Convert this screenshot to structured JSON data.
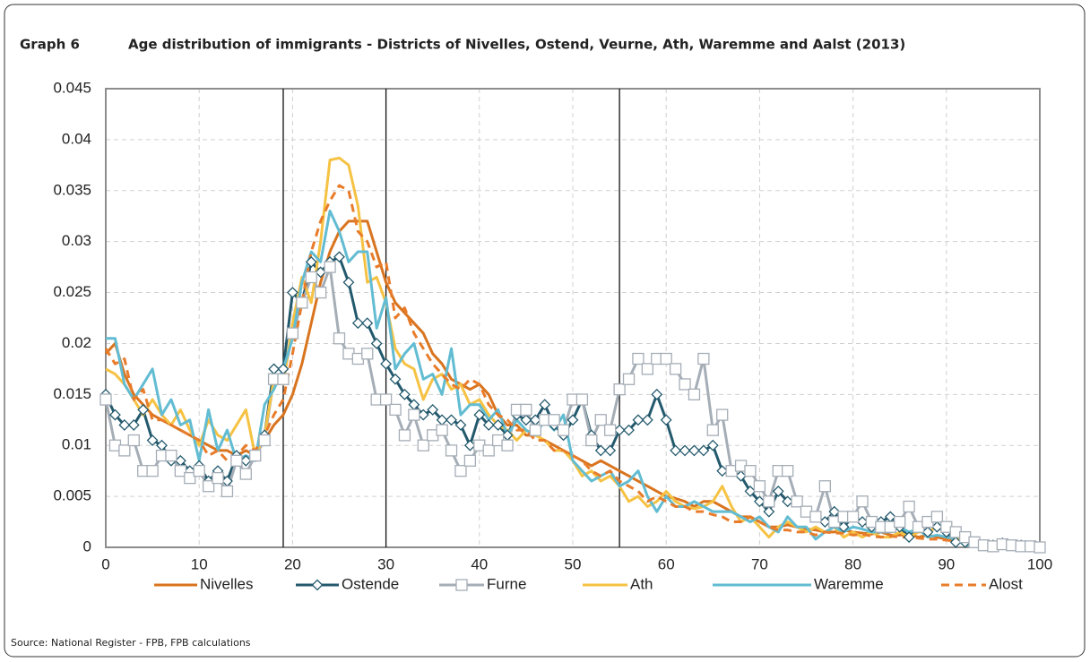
{
  "chart_data": {
    "type": "line",
    "label": "Graph 6",
    "title": "Age distribution of immigrants - Districts of Nivelles, Ostend, Veurne, Ath, Waremme and Aalst (2013)",
    "source": "Source: National Register - FPB, FPB calculations",
    "x": [
      0,
      1,
      2,
      3,
      4,
      5,
      6,
      7,
      8,
      9,
      10,
      11,
      12,
      13,
      14,
      15,
      16,
      17,
      18,
      19,
      20,
      21,
      22,
      23,
      24,
      25,
      26,
      27,
      28,
      29,
      30,
      31,
      32,
      33,
      34,
      35,
      36,
      37,
      38,
      39,
      40,
      41,
      42,
      43,
      44,
      45,
      46,
      47,
      48,
      49,
      50,
      51,
      52,
      53,
      54,
      55,
      56,
      57,
      58,
      59,
      60,
      61,
      62,
      63,
      64,
      65,
      66,
      67,
      68,
      69,
      70,
      71,
      72,
      73,
      74,
      75,
      76,
      77,
      78,
      79,
      80,
      81,
      82,
      83,
      84,
      85,
      86,
      87,
      88,
      89,
      90,
      91,
      92,
      93,
      94,
      95,
      96,
      97,
      98,
      99,
      100
    ],
    "xlim": [
      0,
      100
    ],
    "xticks": [
      0,
      10,
      20,
      30,
      40,
      50,
      60,
      70,
      80,
      90,
      100
    ],
    "ylim": [
      0,
      0.045
    ],
    "yticks": [
      0,
      0.005,
      0.01,
      0.015,
      0.02,
      0.025,
      0.03,
      0.035,
      0.04,
      0.045
    ],
    "grid": true,
    "legend": "bottom",
    "vlines": [
      19,
      30,
      55
    ],
    "series": [
      {
        "name": "Nivelles",
        "color": "#d9741f",
        "values": [
          0.019,
          0.02,
          0.017,
          0.015,
          0.014,
          0.013,
          0.0125,
          0.012,
          0.0115,
          0.011,
          0.0105,
          0.01,
          0.0095,
          0.0095,
          0.009,
          0.0095,
          0.009,
          0.0105,
          0.012,
          0.013,
          0.015,
          0.018,
          0.022,
          0.026,
          0.029,
          0.031,
          0.032,
          0.032,
          0.032,
          0.029,
          0.026,
          0.024,
          0.023,
          0.022,
          0.021,
          0.019,
          0.018,
          0.0165,
          0.016,
          0.0155,
          0.016,
          0.015,
          0.013,
          0.012,
          0.012,
          0.011,
          0.011,
          0.0105,
          0.01,
          0.0095,
          0.009,
          0.0085,
          0.008,
          0.0085,
          0.008,
          0.0075,
          0.007,
          0.0065,
          0.006,
          0.0055,
          0.005,
          0.0048,
          0.0045,
          0.004,
          0.0045,
          0.0045,
          0.004,
          0.0035,
          0.003,
          0.003,
          0.0025,
          0.002,
          0.002,
          0.0022,
          0.002,
          0.0018,
          0.0017,
          0.0015,
          0.0015,
          0.0017,
          0.0015,
          0.0014,
          0.0013,
          0.0015,
          0.0012,
          0.0012,
          0.0013,
          0.001,
          0.0012,
          0.001,
          0.0008,
          0.0007,
          0.0006,
          0.0005,
          0.0005,
          0.0004,
          0.0003,
          0.0003,
          0.0002,
          0.0002,
          0.0001
        ]
      },
      {
        "name": "Ostende",
        "color": "#23596c",
        "marker": "diamond",
        "values": [
          0.015,
          0.013,
          0.012,
          0.012,
          0.0135,
          0.0105,
          0.01,
          0.0085,
          0.0085,
          0.0075,
          0.008,
          0.0065,
          0.0075,
          0.0065,
          0.009,
          0.0085,
          0.009,
          0.011,
          0.0175,
          0.0175,
          0.025,
          0.024,
          0.028,
          0.027,
          0.028,
          0.0285,
          0.026,
          0.022,
          0.022,
          0.02,
          0.018,
          0.0165,
          0.015,
          0.014,
          0.013,
          0.0135,
          0.0125,
          0.0125,
          0.012,
          0.01,
          0.013,
          0.012,
          0.012,
          0.011,
          0.013,
          0.0125,
          0.0125,
          0.014,
          0.012,
          0.011,
          0.0125,
          0.0145,
          0.011,
          0.0095,
          0.0095,
          0.0115,
          0.0115,
          0.0125,
          0.0125,
          0.015,
          0.0125,
          0.0095,
          0.0095,
          0.0095,
          0.0095,
          0.01,
          0.0075,
          0.0075,
          0.007,
          0.0055,
          0.0045,
          0.0035,
          0.0055,
          0.0045,
          0.0045,
          0.0035,
          0.003,
          0.0025,
          0.0035,
          0.002,
          0.003,
          0.0025,
          0.002,
          0.0025,
          0.003,
          0.002,
          0.001,
          0.002,
          0.0015,
          0.002,
          0.0015,
          0.0005,
          0.0005,
          0.0005,
          0.0002,
          0.0002,
          0.0004,
          0.0002,
          0.0002,
          0.0001,
          0
        ]
      },
      {
        "name": "Furne",
        "color": "#a5adb6",
        "marker": "square",
        "values": [
          0.0145,
          0.01,
          0.0095,
          0.0105,
          0.0075,
          0.0075,
          0.009,
          0.009,
          0.0075,
          0.0068,
          0.0075,
          0.006,
          0.0068,
          0.0055,
          0.0085,
          0.0072,
          0.009,
          0.0105,
          0.0165,
          0.0165,
          0.021,
          0.024,
          0.0265,
          0.025,
          0.0275,
          0.0205,
          0.019,
          0.0185,
          0.019,
          0.0145,
          0.0145,
          0.0135,
          0.011,
          0.013,
          0.01,
          0.011,
          0.0115,
          0.0095,
          0.0075,
          0.0085,
          0.01,
          0.0095,
          0.0105,
          0.01,
          0.0135,
          0.0135,
          0.0115,
          0.0125,
          0.0125,
          0.0115,
          0.0145,
          0.0145,
          0.0105,
          0.0125,
          0.0115,
          0.0155,
          0.0165,
          0.0185,
          0.0175,
          0.0185,
          0.0185,
          0.0175,
          0.016,
          0.015,
          0.0185,
          0.0115,
          0.013,
          0.0075,
          0.008,
          0.0075,
          0.006,
          0.0045,
          0.0075,
          0.0075,
          0.0045,
          0.0035,
          0.003,
          0.006,
          0.0025,
          0.003,
          0.003,
          0.0045,
          0.0025,
          0.002,
          0.002,
          0.0025,
          0.004,
          0.002,
          0.0025,
          0.003,
          0.002,
          0.0015,
          0.001,
          0.0005,
          0.0002,
          0.0001,
          0.0003,
          0.0002,
          0.0001,
          0.0001,
          0
        ]
      },
      {
        "name": "Ath",
        "color": "#f6c243",
        "values": [
          0.0175,
          0.017,
          0.016,
          0.0145,
          0.013,
          0.0145,
          0.013,
          0.012,
          0.0135,
          0.0115,
          0.01,
          0.0125,
          0.011,
          0.0105,
          0.012,
          0.0135,
          0.009,
          0.011,
          0.0165,
          0.016,
          0.022,
          0.0265,
          0.024,
          0.03,
          0.038,
          0.0382,
          0.0375,
          0.0335,
          0.026,
          0.0265,
          0.024,
          0.0195,
          0.018,
          0.0175,
          0.0145,
          0.0165,
          0.017,
          0.0155,
          0.016,
          0.014,
          0.0145,
          0.013,
          0.012,
          0.0115,
          0.0105,
          0.0115,
          0.011,
          0.0105,
          0.0095,
          0.0095,
          0.0085,
          0.007,
          0.0075,
          0.0065,
          0.007,
          0.006,
          0.0045,
          0.005,
          0.004,
          0.0045,
          0.0055,
          0.0045,
          0.004,
          0.0038,
          0.004,
          0.0045,
          0.006,
          0.004,
          0.0025,
          0.003,
          0.002,
          0.001,
          0.002,
          0.0025,
          0.002,
          0.0015,
          0.002,
          0.0015,
          0.002,
          0.001,
          0.0015,
          0.001,
          0.0015,
          0.001,
          0.001,
          0.0015,
          0.001,
          0.0015,
          0.0015,
          0.002,
          0.002,
          0.001,
          0.0005,
          0.0005,
          0.0003,
          0.0002,
          0.0002,
          0.0001,
          0.0001,
          0.0001,
          0
        ]
      },
      {
        "name": "Waremme",
        "color": "#62bcd2",
        "values": [
          0.0205,
          0.0205,
          0.016,
          0.0145,
          0.016,
          0.0175,
          0.013,
          0.0145,
          0.012,
          0.0125,
          0.0085,
          0.0135,
          0.0095,
          0.0115,
          0.0085,
          0.009,
          0.0085,
          0.014,
          0.0155,
          0.0175,
          0.0205,
          0.026,
          0.029,
          0.028,
          0.033,
          0.031,
          0.028,
          0.029,
          0.029,
          0.0215,
          0.0245,
          0.0175,
          0.019,
          0.02,
          0.0165,
          0.017,
          0.015,
          0.0195,
          0.013,
          0.014,
          0.014,
          0.0125,
          0.0135,
          0.011,
          0.0125,
          0.0115,
          0.011,
          0.0125,
          0.0115,
          0.013,
          0.0085,
          0.0075,
          0.0065,
          0.007,
          0.0075,
          0.006,
          0.0065,
          0.0075,
          0.005,
          0.0035,
          0.005,
          0.004,
          0.004,
          0.0045,
          0.004,
          0.0035,
          0.0035,
          0.0035,
          0.003,
          0.0025,
          0.003,
          0.002,
          0.0015,
          0.003,
          0.002,
          0.002,
          0.0008,
          0.0015,
          0.002,
          0.0015,
          0.002,
          0.0018,
          0.0015,
          0.0015,
          0.0015,
          0.002,
          0.0015,
          0.0018,
          0.001,
          0.0012,
          0.001,
          0.0008,
          0.0002,
          0.0003,
          0.0002,
          0.0002,
          0.0002,
          0.0001,
          0.0001,
          0.0001,
          0
        ]
      },
      {
        "name": "Alost",
        "color": "#e87c2a",
        "dash": true,
        "values": [
          0.0195,
          0.018,
          0.0185,
          0.0145,
          0.0155,
          0.0125,
          0.0125,
          0.012,
          0.0115,
          0.011,
          0.0105,
          0.009,
          0.0095,
          0.0085,
          0.009,
          0.01,
          0.0095,
          0.011,
          0.013,
          0.0145,
          0.019,
          0.024,
          0.029,
          0.032,
          0.034,
          0.0355,
          0.035,
          0.031,
          0.03,
          0.0275,
          0.028,
          0.0225,
          0.0235,
          0.021,
          0.0195,
          0.018,
          0.017,
          0.016,
          0.0155,
          0.0165,
          0.016,
          0.014,
          0.013,
          0.0125,
          0.0115,
          0.0115,
          0.0105,
          0.0105,
          0.0095,
          0.0095,
          0.009,
          0.0085,
          0.0075,
          0.007,
          0.0075,
          0.0065,
          0.006,
          0.0055,
          0.0045,
          0.005,
          0.0045,
          0.004,
          0.004,
          0.0035,
          0.0035,
          0.0032,
          0.003,
          0.0025,
          0.0025,
          0.003,
          0.0025,
          0.002,
          0.0017,
          0.0017,
          0.0015,
          0.0015,
          0.0012,
          0.0015,
          0.0014,
          0.0014,
          0.0012,
          0.0013,
          0.0011,
          0.001,
          0.0011,
          0.001,
          0.001,
          0.0009,
          0.0008,
          0.0008,
          0.0007,
          0.0006,
          0.0005,
          0.0004,
          0.0004,
          0.0003,
          0.0003,
          0.0002,
          0.0002,
          0.0002,
          0.0001
        ]
      }
    ]
  }
}
